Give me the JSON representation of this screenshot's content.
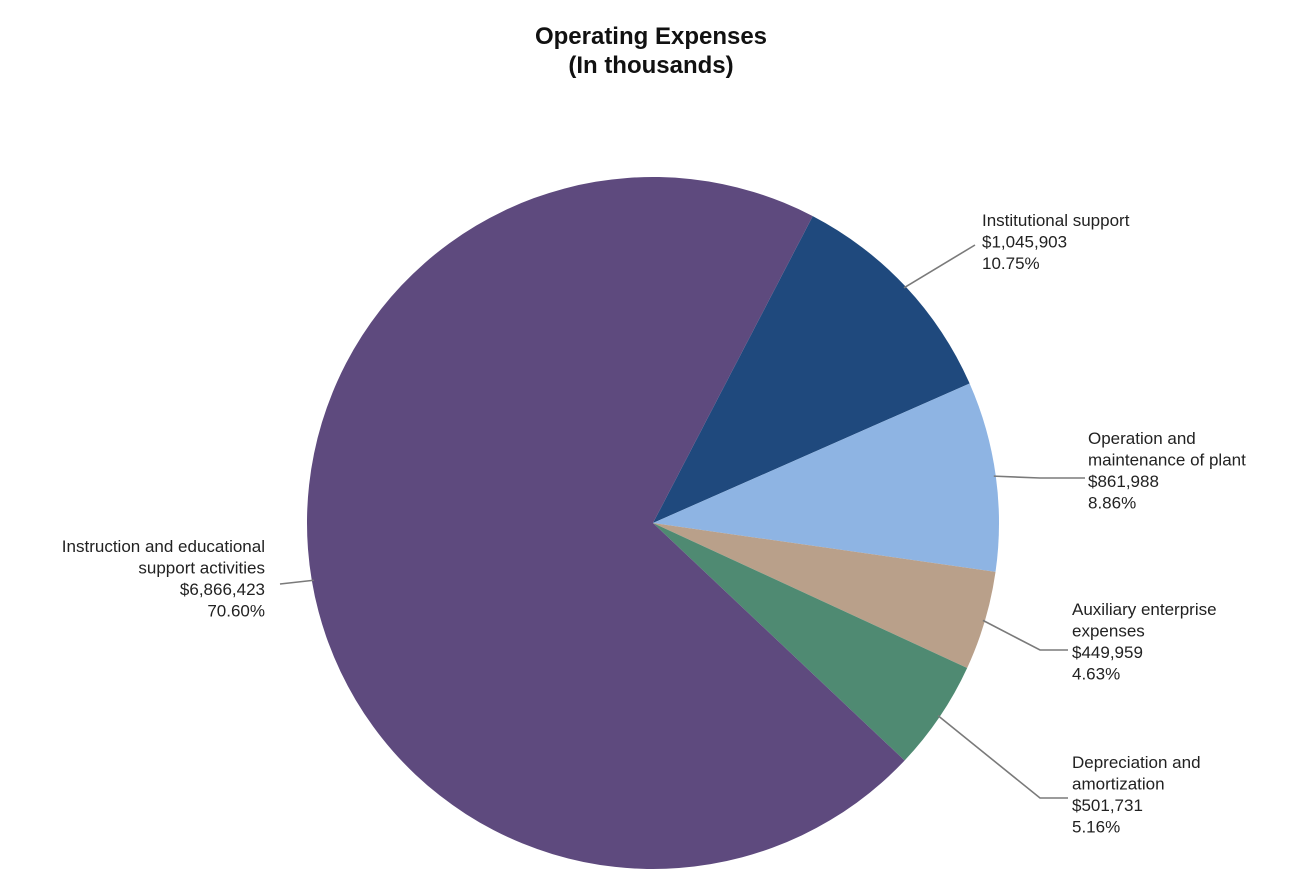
{
  "chart_data": {
    "type": "pie",
    "title": "Operating Expenses",
    "subtitle": "(In thousands)",
    "slices": [
      {
        "name": "Institutional support",
        "label_lines": [
          "Institutional support"
        ],
        "value": 1045903,
        "value_label": "$1,045,903",
        "percent": 10.75,
        "percent_label": "10.75%",
        "color": "#1F497D"
      },
      {
        "name": "Operation and maintenance of plant",
        "label_lines": [
          "Operation and",
          "maintenance of plant"
        ],
        "value": 861988,
        "value_label": "$861,988",
        "percent": 8.86,
        "percent_label": "8.86%",
        "color": "#8EB4E3"
      },
      {
        "name": "Auxiliary enterprise expenses",
        "label_lines": [
          "Auxiliary enterprise",
          "expenses"
        ],
        "value": 449959,
        "value_label": "$449,959",
        "percent": 4.63,
        "percent_label": "4.63%",
        "color": "#B9A08A"
      },
      {
        "name": "Depreciation and amortization",
        "label_lines": [
          "Depreciation and",
          "amortization"
        ],
        "value": 501731,
        "value_label": "$501,731",
        "percent": 5.16,
        "percent_label": "5.16%",
        "color": "#4F8A72"
      },
      {
        "name": "Instruction and educational support activities",
        "label_lines": [
          "Instruction and educational",
          "support activities"
        ],
        "value": 6866423,
        "value_label": "$6,866,423",
        "percent": 70.6,
        "percent_label": "70.60%",
        "color": "#5E4A7E"
      }
    ]
  }
}
